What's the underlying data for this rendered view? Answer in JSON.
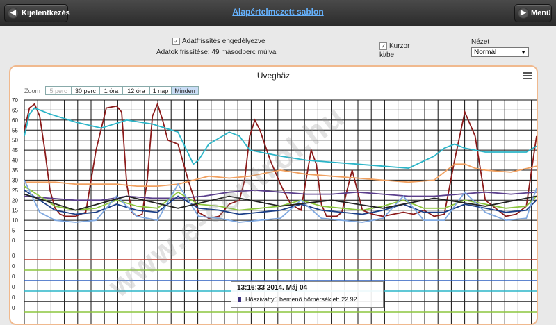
{
  "header": {
    "back_label": "Kijelentkezés",
    "back_icon": "chevron-left-icon",
    "title": "Alapértelmezett sablon",
    "menu_label": "Menü",
    "menu_icon": "chevron-right-icon"
  },
  "controls": {
    "autorefresh_label": "Adatfrissítés engedélyezve",
    "autorefresh_checked": true,
    "refresh_info": "Adatok frissítése: 49 másodperc múlva",
    "cursor_label": "Kurzor ki/be",
    "cursor_checked": true,
    "view_label": "Nézet",
    "view_value": "Normál"
  },
  "chart": {
    "title": "Üveghäz",
    "zoom_label": "Zoom",
    "zoom_buttons": [
      "5 perc",
      "30 perc",
      "1 óra",
      "12 óra",
      "1 nap",
      "Minden"
    ],
    "zoom_active": "Minden",
    "zoom_disabled": "5 perc",
    "watermark": "www.e-control.hu",
    "tooltip": {
      "time": "13:16:33 2014. Máj 04",
      "text": "Hőszivattyú bemenő hőmérséklet: 22.92",
      "color": "#3a2f7e"
    }
  },
  "chart_data": {
    "type": "line",
    "title": "Üveghäz",
    "ylim": [
      0,
      70
    ],
    "yticks": [
      "70",
      "65",
      "60",
      "55",
      "50",
      "45",
      "40",
      "35",
      "30",
      "25",
      "20",
      "15",
      "10",
      "5",
      "0"
    ],
    "lower_ticks": [
      "0",
      "0",
      "0",
      "0",
      "0",
      "0"
    ],
    "grid": true,
    "x_range": [
      0,
      100
    ],
    "series": [
      {
        "color": "#8b1a1a",
        "x": [
          0,
          1,
          2,
          3,
          4,
          5,
          6,
          7,
          8,
          10,
          12,
          14,
          16,
          18,
          19,
          20,
          21,
          22,
          23,
          24,
          25,
          26,
          27,
          28,
          30,
          32,
          34,
          36,
          38,
          40,
          42,
          43,
          44,
          45,
          46,
          48,
          50,
          52,
          54,
          56,
          57,
          58,
          59,
          60,
          61,
          62,
          63,
          64,
          66,
          68,
          70,
          72,
          74,
          76,
          78,
          80,
          82,
          84,
          86,
          88,
          90,
          92,
          94,
          96,
          98,
          100
        ],
        "values": [
          55,
          66,
          68,
          62,
          45,
          25,
          16,
          13,
          12,
          12,
          14,
          45,
          66,
          67,
          64,
          28,
          14,
          12,
          13,
          30,
          62,
          68,
          60,
          50,
          48,
          30,
          14,
          11,
          12,
          18,
          20,
          30,
          52,
          60,
          55,
          40,
          28,
          18,
          15,
          45,
          38,
          18,
          12,
          12,
          12,
          14,
          25,
          35,
          15,
          13,
          12,
          13,
          14,
          13,
          15,
          12,
          13,
          40,
          64,
          52,
          20,
          16,
          12,
          13,
          17,
          52
        ]
      },
      {
        "color": "#2bb5c8",
        "x": [
          0,
          1,
          2,
          5,
          10,
          15,
          20,
          25,
          30,
          33,
          34,
          36,
          40,
          42,
          44,
          46,
          48,
          50,
          55,
          60,
          65,
          70,
          75,
          80,
          82,
          84,
          86,
          88,
          90,
          94,
          98,
          100
        ],
        "values": [
          52,
          63,
          66,
          63,
          59,
          56,
          60,
          58,
          54,
          38,
          40,
          48,
          54,
          52,
          45,
          44,
          43,
          42,
          40,
          39,
          38,
          37,
          36,
          42,
          46,
          48,
          46,
          45,
          44,
          44,
          44,
          47
        ]
      },
      {
        "color": "#f0a060",
        "x": [
          0,
          3,
          6,
          10,
          14,
          18,
          22,
          26,
          30,
          33,
          36,
          40,
          44,
          48,
          50,
          55,
          60,
          65,
          70,
          75,
          80,
          82,
          84,
          86,
          88,
          90,
          95,
          100
        ],
        "values": [
          29,
          29,
          29,
          28,
          28,
          28,
          27,
          27,
          28,
          30,
          32,
          31,
          32,
          34,
          35,
          33,
          32,
          31,
          30,
          29,
          30,
          34,
          38,
          38,
          36,
          35,
          34,
          37
        ]
      },
      {
        "color": "#5b3f8c",
        "x": [
          0,
          5,
          10,
          15,
          20,
          25,
          30,
          35,
          40,
          45,
          50,
          55,
          60,
          65,
          70,
          75,
          80,
          85,
          90,
          95,
          100
        ],
        "values": [
          22,
          21,
          20,
          20,
          22,
          21,
          21,
          22,
          24,
          25,
          24,
          23,
          23,
          24,
          23,
          22,
          22,
          23,
          24,
          23,
          24
        ]
      },
      {
        "color": "#8cc63e",
        "x": [
          0,
          3,
          6,
          10,
          14,
          18,
          22,
          26,
          30,
          34,
          38,
          42,
          46,
          50,
          54,
          58,
          62,
          66,
          70,
          74,
          78,
          82,
          86,
          90,
          94,
          98,
          100
        ],
        "values": [
          27,
          22,
          17,
          15,
          16,
          20,
          17,
          16,
          24,
          18,
          17,
          15,
          16,
          17,
          20,
          17,
          16,
          15,
          17,
          20,
          16,
          16,
          20,
          18,
          16,
          17,
          22
        ]
      },
      {
        "color": "#1c3f87",
        "x": [
          0,
          3,
          6,
          10,
          14,
          18,
          22,
          26,
          30,
          34,
          38,
          42,
          46,
          50,
          54,
          58,
          62,
          66,
          70,
          74,
          78,
          82,
          86,
          90,
          94,
          98,
          100
        ],
        "values": [
          25,
          20,
          15,
          13,
          14,
          18,
          15,
          14,
          22,
          16,
          15,
          13,
          14,
          15,
          18,
          15,
          14,
          13,
          15,
          18,
          14,
          14,
          18,
          16,
          14,
          15,
          20
        ]
      },
      {
        "color": "#7fa8e0",
        "x": [
          0,
          3,
          6,
          10,
          14,
          18,
          22,
          26,
          30,
          34,
          38,
          42,
          46,
          50,
          54,
          58,
          62,
          66,
          70,
          74,
          78,
          82,
          86,
          90,
          94,
          98,
          100
        ],
        "values": [
          30,
          14,
          10,
          9,
          10,
          22,
          12,
          10,
          28,
          12,
          11,
          9,
          10,
          11,
          20,
          11,
          10,
          9,
          11,
          22,
          10,
          10,
          24,
          14,
          10,
          11,
          26
        ]
      },
      {
        "color": "#222222",
        "x": [
          0,
          10,
          20,
          30,
          40,
          50,
          60,
          70,
          80,
          90,
          100
        ],
        "values": [
          23,
          15,
          22,
          16,
          22,
          17,
          20,
          16,
          21,
          17,
          22
        ]
      }
    ],
    "lower_series": [
      {
        "color": "#c0392b",
        "level": 5
      },
      {
        "color": "#8cc63e",
        "level": 4
      },
      {
        "color": "#2b5fc0",
        "level": 3
      },
      {
        "color": "#2bb5c8",
        "level": 2
      },
      {
        "color": "#222222",
        "level": 1
      },
      {
        "color": "#8cc63e",
        "level": 0
      }
    ]
  }
}
